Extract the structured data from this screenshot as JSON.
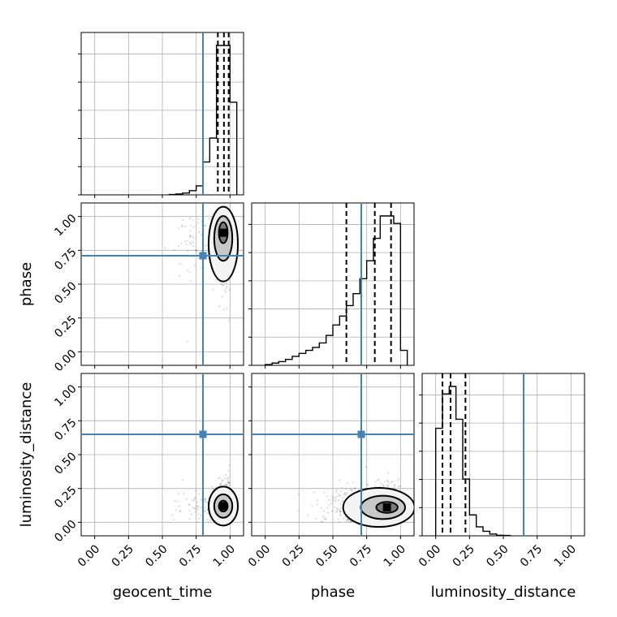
{
  "chart_data": {
    "type": "corner",
    "parameters": [
      "geocent_time",
      "phase",
      "luminosity_distance"
    ],
    "axis_labels": {
      "x": [
        "geocent_time",
        "phase",
        "luminosity_distance"
      ],
      "y": [
        "",
        "phase",
        "luminosity_distance"
      ]
    },
    "ticks": [
      "0.00",
      "0.25",
      "0.50",
      "0.75",
      "1.00"
    ],
    "tick_values": [
      0,
      0.25,
      0.5,
      0.75,
      1.0
    ],
    "axis_range": [
      -0.1,
      1.1
    ],
    "grid": true,
    "truths": {
      "geocent_time": 0.8,
      "phase": 0.71,
      "luminosity_distance": 0.65
    },
    "truth_color": "#4682b4",
    "histograms": {
      "geocent_time": {
        "edges": [
          0.55,
          0.6,
          0.65,
          0.7,
          0.75,
          0.8,
          0.85,
          0.9,
          0.95,
          1.0,
          1.05
        ],
        "counts": [
          0.002,
          0.006,
          0.012,
          0.028,
          0.06,
          0.22,
          0.38,
          1.0,
          1.0,
          0.62
        ],
        "quantiles": [
          0.91,
          0.955,
          0.99
        ]
      },
      "phase": {
        "edges": [
          0.0,
          0.05,
          0.1,
          0.15,
          0.2,
          0.25,
          0.3,
          0.35,
          0.4,
          0.45,
          0.5,
          0.55,
          0.6,
          0.65,
          0.7,
          0.75,
          0.8,
          0.85,
          0.9,
          0.95,
          1.0,
          1.05
        ],
        "counts": [
          0.005,
          0.015,
          0.025,
          0.04,
          0.06,
          0.08,
          0.1,
          0.12,
          0.15,
          0.2,
          0.27,
          0.33,
          0.4,
          0.48,
          0.58,
          0.7,
          0.85,
          1.0,
          1.0,
          0.95,
          0.1
        ],
        "quantiles": [
          0.6,
          0.81,
          0.93
        ]
      },
      "luminosity_distance": {
        "edges": [
          0.0,
          0.05,
          0.1,
          0.15,
          0.2,
          0.25,
          0.3,
          0.35,
          0.4,
          0.45,
          0.5,
          0.55
        ],
        "counts": [
          0.72,
          0.95,
          1.0,
          0.78,
          0.38,
          0.14,
          0.06,
          0.03,
          0.012,
          0.004,
          0.002
        ],
        "quantiles": [
          0.05,
          0.11,
          0.22
        ]
      }
    },
    "contour_peaks": {
      "geocent_time|phase": {
        "x": 0.95,
        "y": 0.88
      },
      "geocent_time|luminosity_distance": {
        "x": 0.95,
        "y": 0.12
      },
      "phase|luminosity_distance": {
        "x": 0.9,
        "y": 0.11
      }
    }
  }
}
